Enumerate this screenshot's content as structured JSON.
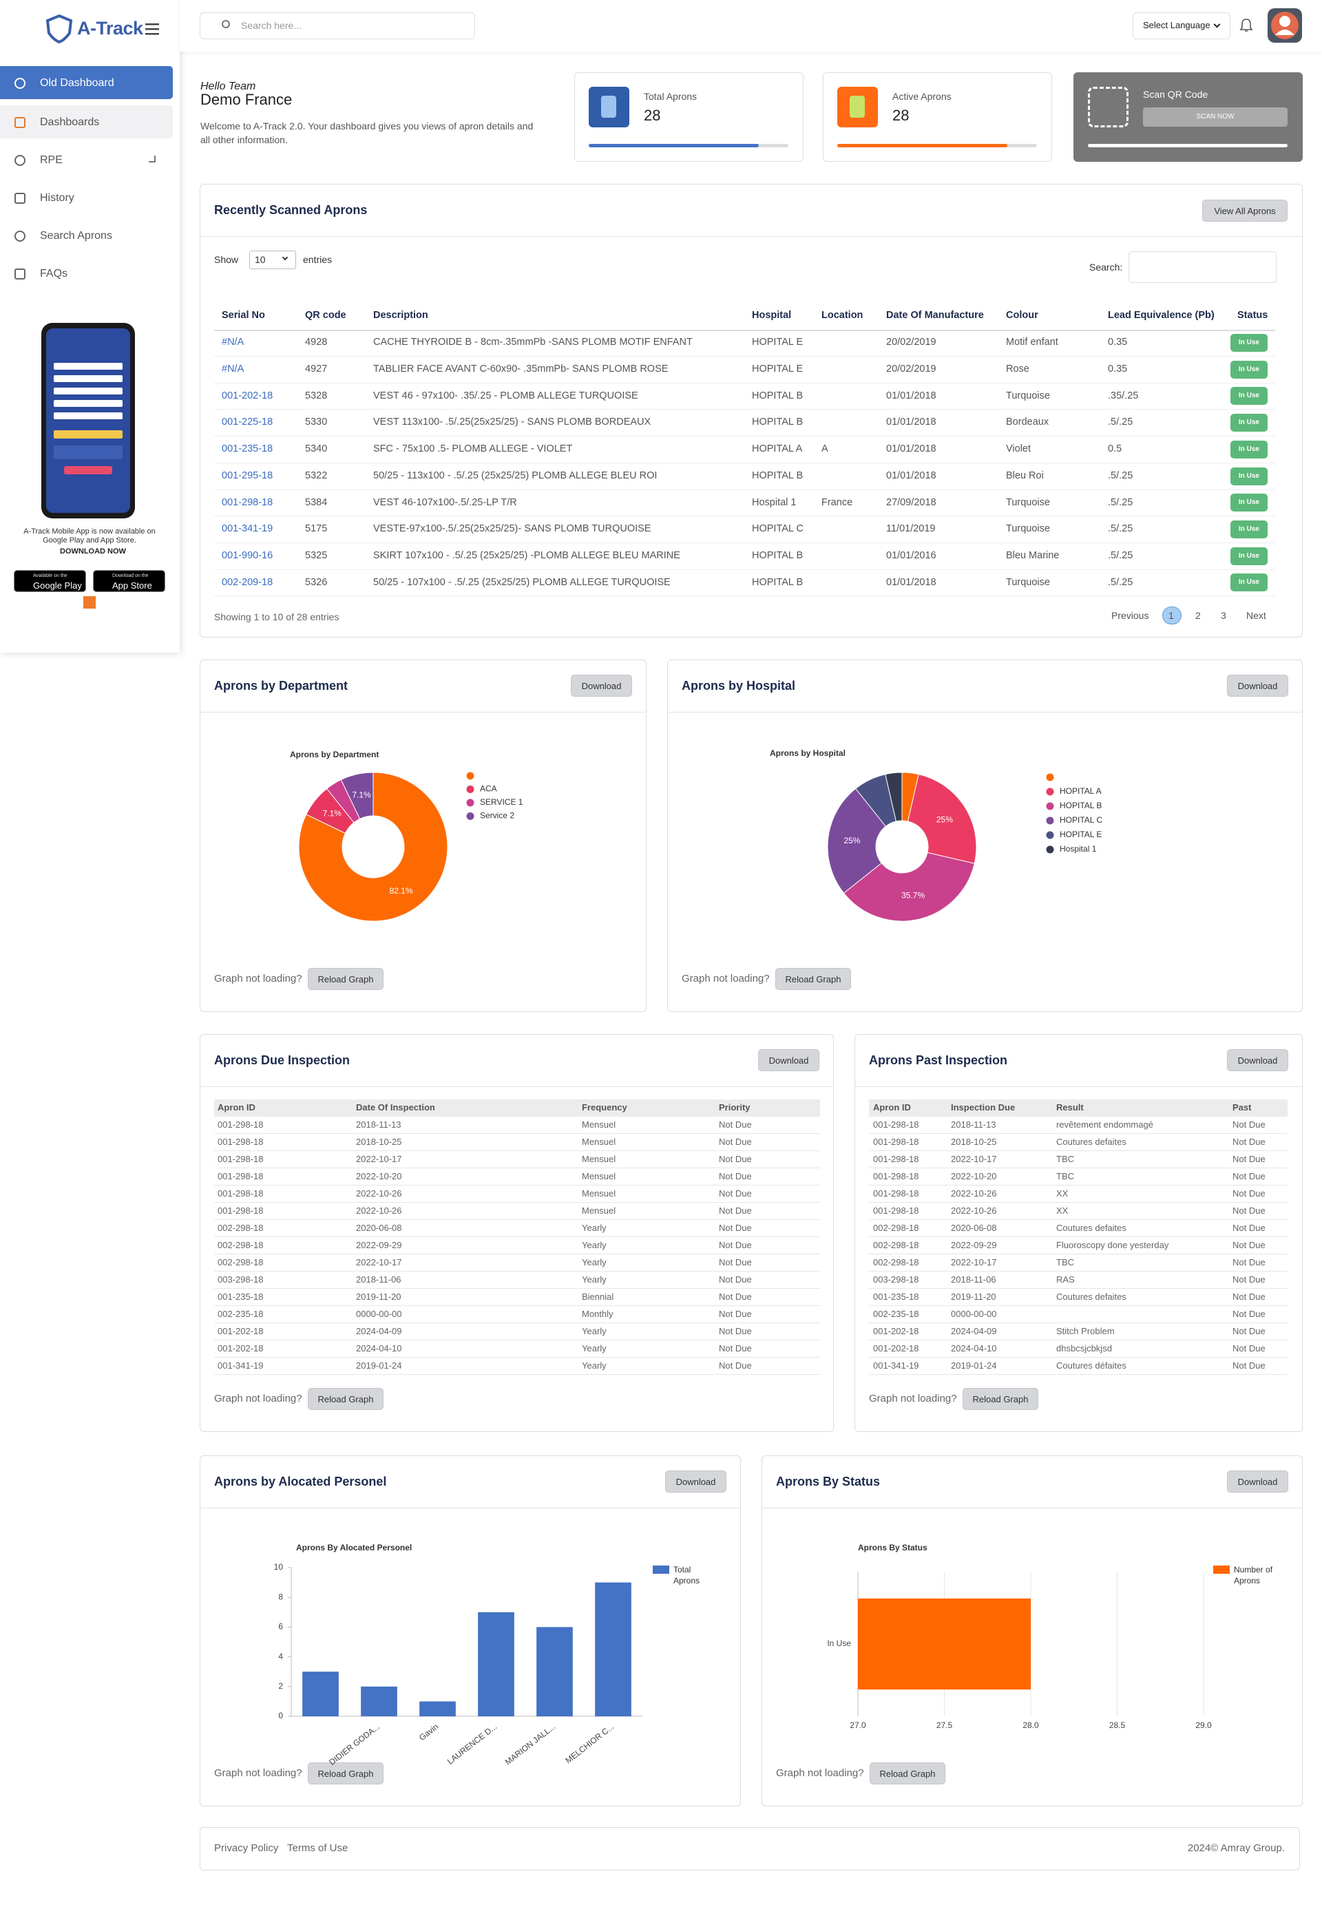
{
  "sidebar": {
    "brand": "A-Track",
    "menu": [
      "Old Dashboard",
      "Dashboards",
      "RPE",
      "History",
      "Search Aprons",
      "FAQs"
    ],
    "promo": {
      "text": "A-Track Mobile App is now available on Google Play and App Store.",
      "cta": "DOWNLOAD NOW",
      "google_small": "Available on the",
      "google": "Google Play",
      "apple_small": "Download on the",
      "apple": "App Store"
    }
  },
  "header": {
    "search_placeholder": "Search here...",
    "language": "Select Language"
  },
  "welcome": {
    "greeting": "Hello Team",
    "name": "Demo France",
    "text": "Welcome to A-Track 2.0. Your dashboard gives you views of apron details and all other information."
  },
  "stats": [
    {
      "label": "Total Aprons",
      "value": 28
    },
    {
      "label": "Active Aprons",
      "value": 28
    }
  ],
  "scan": {
    "label": "Scan QR Code",
    "button": "SCAN NOW"
  },
  "recent": {
    "heading": "Recently Scanned Aprons",
    "button": "View All Aprons",
    "show": "Show",
    "entries_option": "10",
    "entries": "entries",
    "search": "Search:",
    "columns": [
      "Serial No",
      "QR code",
      "Description",
      "Hospital",
      "Location",
      "Date Of Manufacture",
      "Colour",
      "Lead Equivalence (Pb)",
      "Status"
    ],
    "rows": [
      [
        "#N/A",
        "4928",
        "CACHE THYROIDE B - 8cm-.35mmPb -SANS PLOMB MOTIF ENFANT",
        "HOPITAL E",
        null,
        "20/02/2019",
        "Motif enfant",
        "0.35",
        "In Use"
      ],
      [
        "#N/A",
        "4927",
        "TABLIER FACE AVANT C-60x90- .35mmPb- SANS PLOMB ROSE",
        "HOPITAL E",
        null,
        "20/02/2019",
        "Rose",
        "0.35",
        "In Use"
      ],
      [
        "001-202-18",
        "5328",
        "VEST 46 - 97x100- .35/.25 - PLOMB ALLEGE TURQUOISE",
        "HOPITAL B",
        null,
        "01/01/2018",
        "Turquoise",
        ".35/.25",
        "In Use"
      ],
      [
        "001-225-18",
        "5330",
        "VEST 113x100- .5/.25(25x25/25) - SANS PLOMB BORDEAUX",
        "HOPITAL B",
        null,
        "01/01/2018",
        "Bordeaux",
        ".5/.25",
        "In Use"
      ],
      [
        "001-235-18",
        "5340",
        "SFC - 75x100 .5- PLOMB ALLEGE - VIOLET",
        "HOPITAL A",
        "A",
        "01/01/2018",
        "Violet",
        "0.5",
        "In Use"
      ],
      [
        "001-295-18",
        "5322",
        "50/25 - 113x100 - .5/.25 (25x25/25) PLOMB ALLEGE BLEU ROI",
        "HOPITAL B",
        null,
        "01/01/2018",
        "Bleu Roi",
        ".5/.25",
        "In Use"
      ],
      [
        "001-298-18",
        "5384",
        "VEST 46-107x100-.5/.25-LP T/R",
        "Hospital 1",
        "France",
        "27/09/2018",
        "Turquoise",
        ".5/.25",
        "In Use"
      ],
      [
        "001-341-19",
        "5175",
        "VESTE-97x100-.5/.25(25x25/25)- SANS PLOMB TURQUOISE",
        "HOPITAL C",
        null,
        "11/01/2019",
        "Turquoise",
        ".5/.25",
        "In Use"
      ],
      [
        "001-990-16",
        "5325",
        "SKIRT 107x100 - .5/.25 (25x25/25) -PLOMB ALLEGE BLEU MARINE",
        "HOPITAL B",
        null,
        "01/01/2016",
        "Bleu Marine",
        ".5/.25",
        "In Use"
      ],
      [
        "002-209-18",
        "5326",
        "50/25 - 107x100 - .5/.25 (25x25/25) PLOMB ALLEGE TURQUOISE",
        "HOPITAL B",
        null,
        "01/01/2018",
        "Turquoise",
        ".5/.25",
        "In Use"
      ]
    ],
    "info": "Showing 1 to 10 of 28 entries",
    "pagination": [
      "Previous",
      "1",
      "2",
      "3",
      "Next"
    ]
  },
  "ui": {
    "download": "Download",
    "reload_prompt": "Graph not loading?",
    "reload_button": "Reload Graph"
  },
  "panels": {
    "department": "Aprons by Department",
    "hospital": "Aprons by Hospital",
    "due": "Aprons Due Inspection",
    "past": "Aprons Past Inspection",
    "personel": "Aprons by Alocated Personel",
    "status": "Aprons By Status"
  },
  "due_table": {
    "columns": [
      "Apron ID",
      "Date Of Inspection",
      "Frequency",
      "Priority"
    ],
    "rows": [
      [
        "001-298-18",
        "2018-11-13",
        "Mensuel",
        "Not Due"
      ],
      [
        "001-298-18",
        "2018-10-25",
        "Mensuel",
        "Not Due"
      ],
      [
        "001-298-18",
        "2022-10-17",
        "Mensuel",
        "Not Due"
      ],
      [
        "001-298-18",
        "2022-10-20",
        "Mensuel",
        "Not Due"
      ],
      [
        "001-298-18",
        "2022-10-26",
        "Mensuel",
        "Not Due"
      ],
      [
        "001-298-18",
        "2022-10-26",
        "Mensuel",
        "Not Due"
      ],
      [
        "002-298-18",
        "2020-06-08",
        "Yearly",
        "Not Due"
      ],
      [
        "002-298-18",
        "2022-09-29",
        "Yearly",
        "Not Due"
      ],
      [
        "002-298-18",
        "2022-10-17",
        "Yearly",
        "Not Due"
      ],
      [
        "003-298-18",
        "2018-11-06",
        "Yearly",
        "Not Due"
      ],
      [
        "001-235-18",
        "2019-11-20",
        "Biennial",
        "Not Due"
      ],
      [
        "002-235-18",
        "0000-00-00",
        "Monthly",
        "Not Due"
      ],
      [
        "001-202-18",
        "2024-04-09",
        "Yearly",
        "Not Due"
      ],
      [
        "001-202-18",
        "2024-04-10",
        "Yearly",
        "Not Due"
      ],
      [
        "001-341-19",
        "2019-01-24",
        "Yearly",
        "Not Due"
      ]
    ]
  },
  "past_table": {
    "columns": [
      "Apron ID",
      "Inspection Due",
      "Result",
      "Past"
    ],
    "rows": [
      [
        "001-298-18",
        "2018-11-13",
        "revêtement endommagé",
        "Not Due"
      ],
      [
        "001-298-18",
        "2018-10-25",
        "Coutures defaites",
        "Not Due"
      ],
      [
        "001-298-18",
        "2022-10-17",
        "TBC",
        "Not Due"
      ],
      [
        "001-298-18",
        "2022-10-20",
        "TBC",
        "Not Due"
      ],
      [
        "001-298-18",
        "2022-10-26",
        "XX",
        "Not Due"
      ],
      [
        "001-298-18",
        "2022-10-26",
        "XX",
        "Not Due"
      ],
      [
        "002-298-18",
        "2020-06-08",
        "Coutures defaites",
        "Not Due"
      ],
      [
        "002-298-18",
        "2022-09-29",
        "Fluoroscopy done yesterday",
        "Not Due"
      ],
      [
        "002-298-18",
        "2022-10-17",
        "TBC",
        "Not Due"
      ],
      [
        "003-298-18",
        "2018-11-06",
        "RAS",
        "Not Due"
      ],
      [
        "001-235-18",
        "2019-11-20",
        "Coutures defaites",
        "Not Due"
      ],
      [
        "002-235-18",
        "0000-00-00",
        null,
        "Not Due"
      ],
      [
        "001-202-18",
        "2024-04-09",
        "Stitch Problem",
        "Not Due"
      ],
      [
        "001-202-18",
        "2024-04-10",
        "dhsbcsjcbkjsd",
        "Not Due"
      ],
      [
        "001-341-19",
        "2019-01-24",
        "Coutures défaites",
        "Not Due"
      ]
    ]
  },
  "chart_data": [
    {
      "type": "doughnut",
      "title": "Aprons by Department",
      "categories": [
        null,
        "ACA",
        "SERVICE 1",
        "Service 2"
      ],
      "values": [
        82.1,
        7.1,
        3.6,
        7.1
      ],
      "value_labels": [
        "82.1%",
        "7.1%",
        null,
        "7.1%"
      ],
      "colors": [
        "#fd6a02",
        "#e8365e",
        "#cc3f8c",
        "#7b4b9b"
      ]
    },
    {
      "type": "doughnut",
      "title": "Aprons by Hospital",
      "categories": [
        null,
        "HOPITAL A",
        "HOPITAL B",
        "HOPITAL C",
        "HOPITAL E",
        "Hospital 1"
      ],
      "values": [
        3.6,
        25,
        35.7,
        25,
        7.1,
        3.6
      ],
      "value_labels": [
        null,
        "25%",
        "35.7%",
        "25%",
        null,
        null
      ],
      "colors": [
        "#fd6a02",
        "#eb3b62",
        "#c9408c",
        "#7b4b9b",
        "#4a5283",
        "#353b4f"
      ]
    },
    {
      "type": "bar",
      "title": "Aprons By Alocated Personel",
      "categories": [
        null,
        "DIDIER GODA...",
        "Gavin",
        "LAURENCE D...",
        "MARION JALL...",
        "MELCHIOR C..."
      ],
      "series": [
        {
          "name": "Total Aprons",
          "color": "#4472c4",
          "values": [
            3,
            2,
            1,
            7,
            6,
            9
          ]
        }
      ],
      "ylim": [
        0,
        10
      ],
      "yticks": [
        0,
        2,
        4,
        6,
        8,
        10
      ],
      "grid": false,
      "legend": "right"
    },
    {
      "type": "bar",
      "orientation": "horizontal",
      "title": "Aprons By Status",
      "categories": [
        "In Use"
      ],
      "series": [
        {
          "name": "Number of Aprons",
          "color": "#ff6600",
          "values": [
            28
          ]
        }
      ],
      "xlim": [
        27,
        29
      ],
      "xticks": [
        {
          "value": 27,
          "label": "27.0"
        },
        27.5,
        {
          "value": 28,
          "label": "28.0"
        },
        28.5,
        {
          "value": 29,
          "label": "29.0"
        }
      ],
      "grid": true,
      "legend": "right"
    }
  ],
  "footer": {
    "links": [
      "Privacy Policy",
      "Terms of Use"
    ],
    "copyright": "2024© Amray Group."
  }
}
